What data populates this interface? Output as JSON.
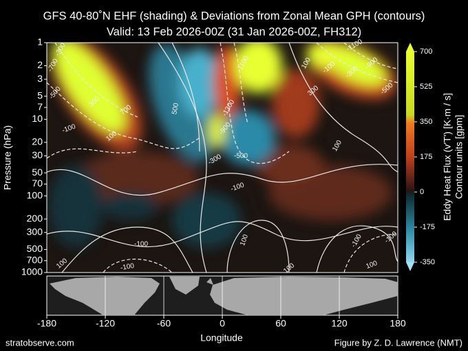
{
  "chart_data": {
    "type": "contour",
    "title": "GFS 40-80˚N EHF (shading) & Deviations from Zonal Mean GPH (contours)",
    "subtitle": "Valid: 13 Feb 2026-00Z  (31 Jan 2026-00Z, FH312)",
    "x_label": "Longitude",
    "y_label": "Pressure (hPa)",
    "xlim": [
      -180,
      180
    ],
    "xticks": [
      -180,
      -120,
      -60,
      0,
      60,
      120,
      180
    ],
    "ylim": [
      1000,
      1
    ],
    "yticks": [
      1,
      2,
      3,
      5,
      7,
      10,
      20,
      30,
      50,
      70,
      100,
      200,
      300,
      500,
      700,
      1000
    ],
    "y_scale": "log",
    "colorbar": {
      "label": "Eddy Heat Flux (v'T') [K·m / s]",
      "sublabel": "Contour units [gpm]",
      "lim": [
        -350,
        700
      ],
      "ticks": [
        700,
        525,
        350,
        175,
        0,
        -175,
        -350
      ]
    },
    "contour_labels": [
      -300,
      -700,
      -500,
      300,
      700,
      -100,
      100,
      500,
      -1300,
      -900,
      -1100,
      -300,
      -500,
      -100,
      100,
      -100,
      -300,
      -900,
      -1100,
      -500,
      300,
      100,
      -100,
      100,
      -100,
      -100,
      100,
      -100,
      100,
      100
    ],
    "footer_left": "stratobserve.com",
    "footer_right": "Figure by Z. D. Lawrence (NMT)"
  }
}
